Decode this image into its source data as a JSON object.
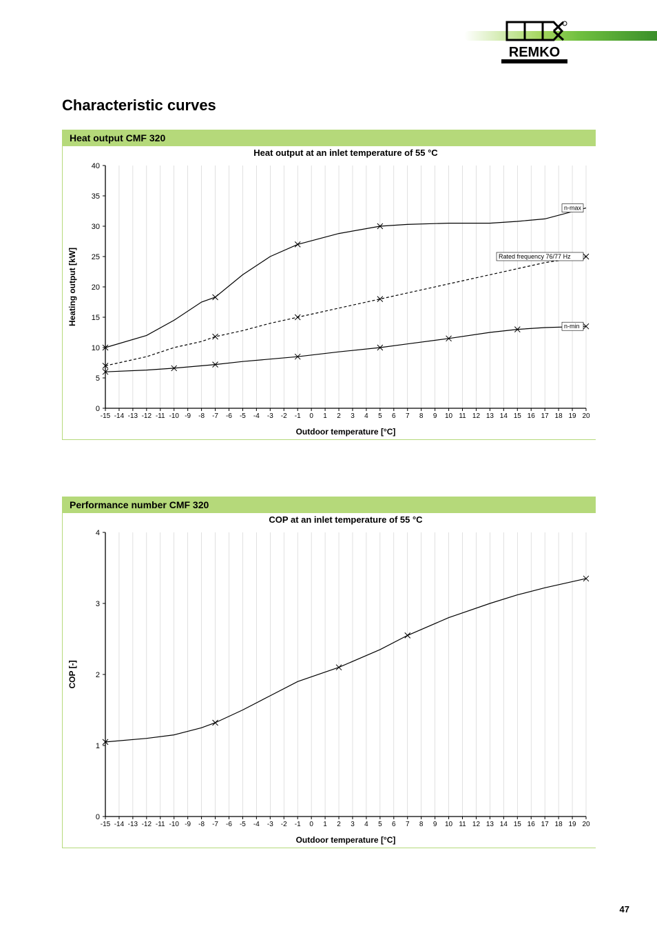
{
  "brand": "REMKO",
  "page_title": "Characteristic curves",
  "page_number": "47",
  "colors": {
    "accent": "#b5d97a",
    "grid": "#cccccc",
    "axis": "#000000",
    "line": "#000000",
    "bg": "#ffffff",
    "header_gradient": [
      "#ffffff",
      "#a4d65e",
      "#6fbf3f",
      "#3a8f2a"
    ]
  },
  "chart1": {
    "header": "Heat output CMF 320",
    "title": "Heat output at an inlet temperature of 55 °C",
    "type": "line",
    "xlabel": "Outdoor temperature [°C]",
    "ylabel": "Heating output [kW]",
    "xlim": [
      -15,
      20
    ],
    "ylim": [
      0,
      40
    ],
    "xtick_step": 1,
    "ytick_step": 5,
    "title_fontsize": 13,
    "label_fontsize": 12,
    "tick_fontsize": 10,
    "grid_color": "#cccccc",
    "axis_color": "#000000",
    "line_color": "#000000",
    "line_width": 1.2,
    "marker": "x",
    "marker_size": 4,
    "series": {
      "nmax": {
        "label": "n-max",
        "style": "solid",
        "data": [
          [
            -15,
            10.0
          ],
          [
            -12,
            12.0
          ],
          [
            -10,
            14.5
          ],
          [
            -8,
            17.5
          ],
          [
            -7,
            18.3
          ],
          [
            -5,
            22.0
          ],
          [
            -3,
            25.0
          ],
          [
            -1,
            27.0
          ],
          [
            2,
            28.8
          ],
          [
            5,
            30.0
          ],
          [
            7,
            30.3
          ],
          [
            10,
            30.5
          ],
          [
            13,
            30.5
          ],
          [
            15,
            30.8
          ],
          [
            17,
            31.2
          ],
          [
            20,
            33.0
          ]
        ],
        "markers_at": [
          -15,
          -7,
          -1,
          5
        ]
      },
      "rated": {
        "label": "Rated frequency 76/77 Hz",
        "style": "dashed",
        "data": [
          [
            -15,
            7.0
          ],
          [
            -12,
            8.5
          ],
          [
            -10,
            10.0
          ],
          [
            -8,
            11.0
          ],
          [
            -7,
            11.8
          ],
          [
            -5,
            12.8
          ],
          [
            -3,
            14.0
          ],
          [
            -1,
            15.0
          ],
          [
            2,
            16.5
          ],
          [
            5,
            18.0
          ],
          [
            7,
            19.0
          ],
          [
            10,
            20.5
          ],
          [
            13,
            22.0
          ],
          [
            15,
            23.0
          ],
          [
            17,
            24.0
          ],
          [
            20,
            25.0
          ]
        ],
        "markers_at": [
          -15,
          -7,
          -1,
          5,
          20
        ]
      },
      "nmin": {
        "label": "n-min",
        "style": "solid",
        "data": [
          [
            -15,
            6.0
          ],
          [
            -12,
            6.3
          ],
          [
            -10,
            6.6
          ],
          [
            -8,
            7.0
          ],
          [
            -7,
            7.2
          ],
          [
            -5,
            7.7
          ],
          [
            -3,
            8.1
          ],
          [
            -1,
            8.5
          ],
          [
            2,
            9.3
          ],
          [
            5,
            10.0
          ],
          [
            7,
            10.6
          ],
          [
            10,
            11.5
          ],
          [
            13,
            12.5
          ],
          [
            15,
            13.0
          ],
          [
            17,
            13.3
          ],
          [
            20,
            13.5
          ]
        ],
        "markers_at": [
          -15,
          -10,
          -7,
          -1,
          5,
          10,
          15,
          20
        ]
      }
    }
  },
  "chart2": {
    "header": "Performance number CMF 320",
    "title": "COP at an inlet temperature of 55 °C",
    "type": "line",
    "xlabel": "Outdoor temperature [°C]",
    "ylabel": "COP [-]",
    "xlim": [
      -15,
      20
    ],
    "ylim": [
      0,
      4
    ],
    "xtick_step": 1,
    "ytick_step": 1,
    "title_fontsize": 13,
    "label_fontsize": 12,
    "tick_fontsize": 10,
    "grid_color": "#cccccc",
    "axis_color": "#000000",
    "line_color": "#000000",
    "line_width": 1.2,
    "marker": "x",
    "marker_size": 4,
    "series": {
      "cop": {
        "style": "solid",
        "data": [
          [
            -15,
            1.05
          ],
          [
            -12,
            1.1
          ],
          [
            -10,
            1.15
          ],
          [
            -8,
            1.25
          ],
          [
            -7,
            1.32
          ],
          [
            -5,
            1.5
          ],
          [
            -3,
            1.7
          ],
          [
            -1,
            1.9
          ],
          [
            2,
            2.1
          ],
          [
            5,
            2.35
          ],
          [
            7,
            2.55
          ],
          [
            10,
            2.8
          ],
          [
            13,
            3.0
          ],
          [
            15,
            3.12
          ],
          [
            17,
            3.22
          ],
          [
            20,
            3.35
          ]
        ],
        "markers_at": [
          -15,
          -7,
          2,
          7,
          20
        ]
      }
    }
  }
}
